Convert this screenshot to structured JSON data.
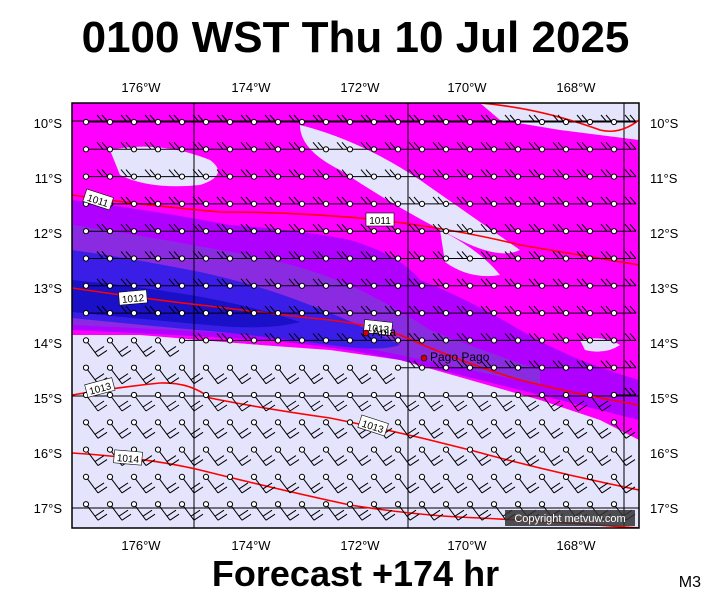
{
  "title": "0100 WST Thu 10 Jul 2025",
  "footer": "Forecast +174 hr",
  "model": "M3",
  "copyright": "Copyright metvuw.com",
  "lon_labels": [
    "176°W",
    "174°W",
    "172°W",
    "170°W",
    "168°W"
  ],
  "lat_labels": [
    "10°S",
    "11°S",
    "12°S",
    "13°S",
    "14°S",
    "15°S",
    "16°S",
    "17°S"
  ],
  "isobars": [
    "1011",
    "1011",
    "1012",
    "1013",
    "1013",
    "1013",
    "1014"
  ],
  "places": [
    "Apia",
    "Pago Pago"
  ],
  "colors": {
    "light": "#e4e4fc",
    "magenta": "#ff00ff",
    "violet": "#b000ff",
    "purple": "#8a2be2",
    "blue": "#3a1ee8",
    "deep": "#1a10c8",
    "isobar": "#ff0000"
  }
}
